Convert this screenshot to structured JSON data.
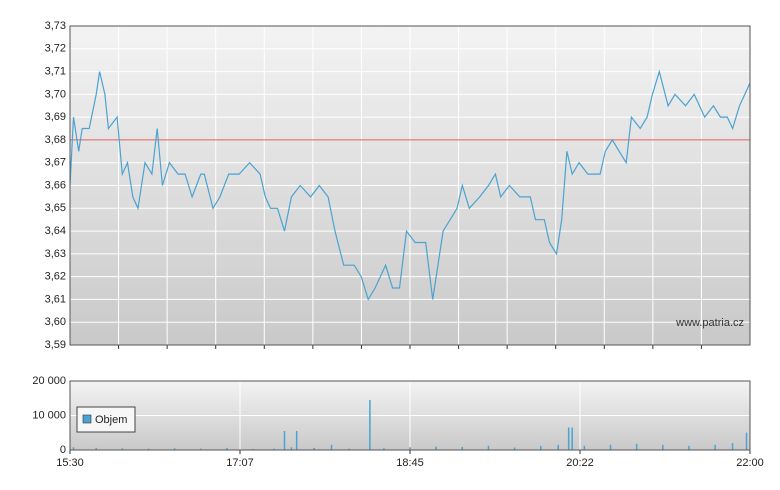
{
  "chart_data": [
    {
      "type": "line",
      "color": "#4aa3d1",
      "x": [
        930,
        932,
        935,
        937,
        941,
        945,
        947,
        950,
        952,
        957,
        960,
        963,
        966,
        969,
        973,
        977,
        980,
        983,
        987,
        992,
        996,
        1000,
        1005,
        1007,
        1012,
        1016,
        1021,
        1027,
        1033,
        1039,
        1042,
        1045,
        1049,
        1053,
        1057,
        1062,
        1068,
        1073,
        1078,
        1082,
        1087,
        1093,
        1097,
        1101,
        1105,
        1111,
        1115,
        1119,
        1123,
        1128,
        1134,
        1138,
        1140,
        1144,
        1148,
        1152,
        1155,
        1159,
        1165,
        1170,
        1174,
        1177,
        1182,
        1188,
        1194,
        1197,
        1202,
        1205,
        1209,
        1212,
        1215,
        1218,
        1222,
        1227,
        1234,
        1237,
        1241,
        1245,
        1249,
        1252,
        1257,
        1261,
        1264,
        1268,
        1273,
        1277,
        1283,
        1288,
        1294,
        1299,
        1303,
        1307,
        1310,
        1314,
        1317,
        1320
      ],
      "values": [
        3.66,
        3.69,
        3.675,
        3.685,
        3.685,
        3.7,
        3.71,
        3.7,
        3.685,
        3.69,
        3.665,
        3.67,
        3.655,
        3.65,
        3.67,
        3.665,
        3.685,
        3.66,
        3.67,
        3.665,
        3.665,
        3.655,
        3.665,
        3.665,
        3.65,
        3.655,
        3.665,
        3.665,
        3.67,
        3.665,
        3.655,
        3.65,
        3.65,
        3.64,
        3.655,
        3.66,
        3.655,
        3.66,
        3.655,
        3.64,
        3.625,
        3.625,
        3.62,
        3.61,
        3.615,
        3.625,
        3.615,
        3.615,
        3.64,
        3.635,
        3.635,
        3.61,
        3.62,
        3.64,
        3.645,
        3.65,
        3.66,
        3.65,
        3.655,
        3.66,
        3.665,
        3.655,
        3.66,
        3.655,
        3.655,
        3.645,
        3.645,
        3.635,
        3.63,
        3.645,
        3.675,
        3.665,
        3.67,
        3.665,
        3.665,
        3.675,
        3.68,
        3.675,
        3.67,
        3.69,
        3.685,
        3.69,
        3.7,
        3.71,
        3.695,
        3.7,
        3.695,
        3.7,
        3.69,
        3.695,
        3.69,
        3.69,
        3.685,
        3.695,
        3.7,
        3.705
      ],
      "xlim": [
        930,
        1320
      ],
      "ylim": [
        3.59,
        3.73
      ],
      "yticks": [
        {
          "value": 3.59,
          "label": "3,59"
        },
        {
          "value": 3.6,
          "label": "3,60"
        },
        {
          "value": 3.61,
          "label": "3,61"
        },
        {
          "value": 3.62,
          "label": "3,62"
        },
        {
          "value": 3.63,
          "label": "3,63"
        },
        {
          "value": 3.64,
          "label": "3,64"
        },
        {
          "value": 3.65,
          "label": "3,65"
        },
        {
          "value": 3.66,
          "label": "3,66"
        },
        {
          "value": 3.67,
          "label": "3,67"
        },
        {
          "value": 3.68,
          "label": "3,68"
        },
        {
          "value": 3.69,
          "label": "3,69"
        },
        {
          "value": 3.7,
          "label": "3,70"
        },
        {
          "value": 3.71,
          "label": "3,71"
        },
        {
          "value": 3.72,
          "label": "3,72"
        },
        {
          "value": 3.73,
          "label": "3,73"
        }
      ],
      "reference_line": 3.68,
      "reference_color": "#e05a5a",
      "watermark": "www.patria.cz",
      "grid": true
    },
    {
      "type": "bar",
      "x": [
        932,
        945,
        960,
        975,
        990,
        1005,
        1020,
        1035,
        1047,
        1053,
        1057,
        1060,
        1070,
        1080,
        1090,
        1102,
        1110,
        1125,
        1140,
        1155,
        1170,
        1185,
        1200,
        1210,
        1216,
        1218,
        1225,
        1240,
        1255,
        1270,
        1285,
        1300,
        1310,
        1318
      ],
      "series": [
        {
          "name": "Objem",
          "color": "#4aa3d1",
          "values": [
            800,
            600,
            500,
            400,
            500,
            400,
            600,
            300,
            400,
            5500,
            800,
            5500,
            600,
            1500,
            400,
            14500,
            500,
            800,
            1000,
            900,
            1200,
            700,
            1200,
            1500,
            6500,
            6500,
            1200,
            1500,
            1800,
            1500,
            1200,
            1500,
            2000,
            5000
          ]
        }
      ],
      "xlim": [
        930,
        1320
      ],
      "ylim": [
        0,
        20000
      ],
      "yticks": [
        0,
        {
          "value": 10000,
          "label": "10 000"
        },
        {
          "value": 20000,
          "label": "20 000"
        }
      ],
      "xticks": [
        {
          "value": 930,
          "label": "15:30"
        },
        {
          "value": 1027.5,
          "label": "17:07"
        },
        {
          "value": 1125,
          "label": "18:45"
        },
        {
          "value": 1222.5,
          "label": "20:22"
        },
        {
          "value": 1320,
          "label": "22:00"
        }
      ],
      "grid": true
    }
  ]
}
